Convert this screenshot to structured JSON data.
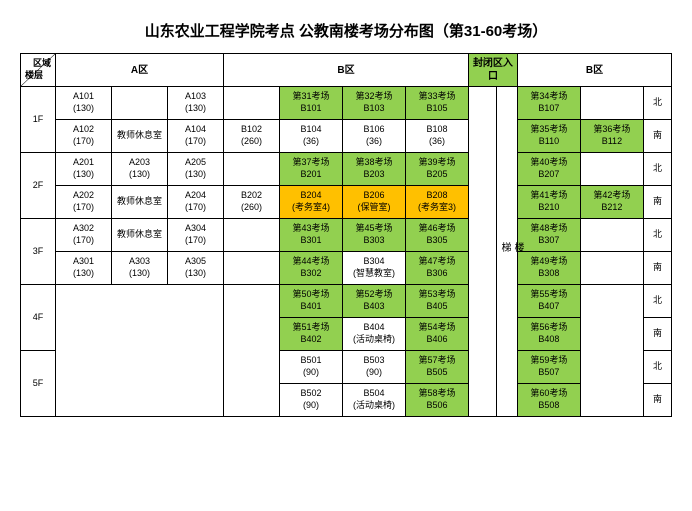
{
  "title": "山东农业工程学院考点 公教南楼考场分布图（第31-60考场）",
  "corner": {
    "top": "区域",
    "bot": "楼层"
  },
  "zones": {
    "a": "A区",
    "b": "B区",
    "entrance": "封闭区入口",
    "b2": "B区"
  },
  "stairwell": "楼\n梯",
  "side": {
    "n": "北",
    "s": "南"
  },
  "floors": {
    "f1": {
      "label": "1F",
      "r1": {
        "a1": "A101\n(130)",
        "a2": "",
        "a3": "A103\n(130)",
        "b1": "",
        "b2": "第31考场\nB101",
        "b3": "第32考场\nB103",
        "b4": "第33考场\nB105",
        "c1": "第34考场\nB107",
        "c2": ""
      },
      "r2": {
        "a1": "A102\n(170)",
        "a2": "教师休息室",
        "a3": "A104\n(170)",
        "b1": "B102\n(260)",
        "b2": "B104\n(36)",
        "b3": "B106\n(36)",
        "b4": "B108\n(36)",
        "c1": "第35考场\nB110",
        "c2": "第36考场\nB112"
      }
    },
    "f2": {
      "label": "2F",
      "r1": {
        "a1": "A201\n(130)",
        "a2": "A203\n(130)",
        "a3": "A205\n(130)",
        "b1": "",
        "b2": "第37考场\nB201",
        "b3": "第38考场\nB203",
        "b4": "第39考场\nB205",
        "c1": "第40考场\nB207",
        "c2": ""
      },
      "r2": {
        "a1": "A202\n(170)",
        "a2": "教师休息室",
        "a3": "A204\n(170)",
        "b1": "B202\n(260)",
        "b2": "B204\n(考务室4)",
        "b3": "B206\n(保管室)",
        "b4": "B208\n(考务室3)",
        "c1": "第41考场\nB210",
        "c2": "第42考场\nB212"
      }
    },
    "f3": {
      "label": "3F",
      "r1": {
        "a1": "A302\n(170)",
        "a2": "教师休息室",
        "a3": "A304\n(170)",
        "b1": "",
        "b2": "第43考场\nB301",
        "b3": "第45考场\nB303",
        "b4": "第46考场\nB305",
        "c1": "第48考场\nB307",
        "c2": ""
      },
      "r2": {
        "a1": "A301\n(130)",
        "a2": "A303\n(130)",
        "a3": "A305\n(130)",
        "b1": "",
        "b2": "第44考场\nB302",
        "b3": "B304\n(智慧教室)",
        "b4": "第47考场\nB306",
        "c1": "第49考场\nB308",
        "c2": ""
      }
    },
    "f4": {
      "label": "4F",
      "r1": {
        "b2": "第50考场\nB401",
        "b3": "第52考场\nB403",
        "b4": "第53考场\nB405",
        "c1": "第55考场\nB407"
      },
      "r2": {
        "b2": "第51考场\nB402",
        "b3": "B404\n(活动桌椅)",
        "b4": "第54考场\nB406",
        "c1": "第56考场\nB408"
      }
    },
    "f5": {
      "label": "5F",
      "r1": {
        "b2": "B501\n(90)",
        "b3": "B503\n(90)",
        "b4": "第57考场\nB505",
        "c1": "第59考场\nB507"
      },
      "r2": {
        "b2": "B502\n(90)",
        "b3": "B504\n(活动桌椅)",
        "b4": "第58考场\nB506",
        "c1": "第60考场\nB508"
      }
    }
  }
}
